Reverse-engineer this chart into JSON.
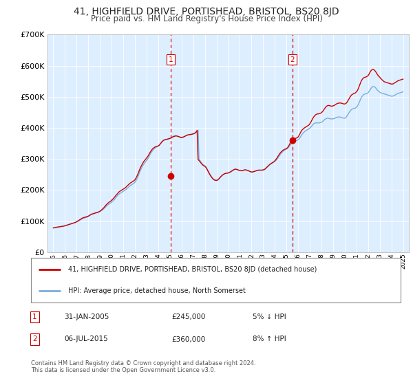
{
  "title": "41, HIGHFIELD DRIVE, PORTISHEAD, BRISTOL, BS20 8JD",
  "subtitle": "Price paid vs. HM Land Registry's House Price Index (HPI)",
  "legend_line1": "41, HIGHFIELD DRIVE, PORTISHEAD, BRISTOL, BS20 8JD (detached house)",
  "legend_line2": "HPI: Average price, detached house, North Somerset",
  "sale1_date": "31-JAN-2005",
  "sale1_price": "£245,000",
  "sale1_hpi": "5% ↓ HPI",
  "sale1_year": 2005.08,
  "sale1_value": 245000,
  "sale2_date": "06-JUL-2015",
  "sale2_price": "£360,000",
  "sale2_hpi": "8% ↑ HPI",
  "sale2_year": 2015.5,
  "sale2_value": 360000,
  "footer": "Contains HM Land Registry data © Crown copyright and database right 2024.\nThis data is licensed under the Open Government Licence v3.0.",
  "line_color_property": "#cc0000",
  "line_color_hpi": "#7aaddc",
  "vline_color": "#cc0000",
  "plot_bg_color": "#ddeeff",
  "grid_color": "#ffffff",
  "ylim": [
    0,
    700000
  ],
  "xlim_start": 1994.5,
  "xlim_end": 2025.5,
  "hpi_x": [
    1995.0,
    1995.083,
    1995.167,
    1995.25,
    1995.333,
    1995.417,
    1995.5,
    1995.583,
    1995.667,
    1995.75,
    1995.833,
    1995.917,
    1996.0,
    1996.083,
    1996.167,
    1996.25,
    1996.333,
    1996.417,
    1996.5,
    1996.583,
    1996.667,
    1996.75,
    1996.833,
    1996.917,
    1997.0,
    1997.083,
    1997.167,
    1997.25,
    1997.333,
    1997.417,
    1997.5,
    1997.583,
    1997.667,
    1997.75,
    1997.833,
    1997.917,
    1998.0,
    1998.083,
    1998.167,
    1998.25,
    1998.333,
    1998.417,
    1998.5,
    1998.583,
    1998.667,
    1998.75,
    1998.833,
    1998.917,
    1999.0,
    1999.083,
    1999.167,
    1999.25,
    1999.333,
    1999.417,
    1999.5,
    1999.583,
    1999.667,
    1999.75,
    1999.833,
    1999.917,
    2000.0,
    2000.083,
    2000.167,
    2000.25,
    2000.333,
    2000.417,
    2000.5,
    2000.583,
    2000.667,
    2000.75,
    2000.833,
    2000.917,
    2001.0,
    2001.083,
    2001.167,
    2001.25,
    2001.333,
    2001.417,
    2001.5,
    2001.583,
    2001.667,
    2001.75,
    2001.833,
    2001.917,
    2002.0,
    2002.083,
    2002.167,
    2002.25,
    2002.333,
    2002.417,
    2002.5,
    2002.583,
    2002.667,
    2002.75,
    2002.833,
    2002.917,
    2003.0,
    2003.083,
    2003.167,
    2003.25,
    2003.333,
    2003.417,
    2003.5,
    2003.583,
    2003.667,
    2003.75,
    2003.833,
    2003.917,
    2004.0,
    2004.083,
    2004.167,
    2004.25,
    2004.333,
    2004.417,
    2004.5,
    2004.583,
    2004.667,
    2004.75,
    2004.833,
    2004.917,
    2005.0,
    2005.083,
    2005.167,
    2005.25,
    2005.333,
    2005.417,
    2005.5,
    2005.583,
    2005.667,
    2005.75,
    2005.833,
    2005.917,
    2006.0,
    2006.083,
    2006.167,
    2006.25,
    2006.333,
    2006.417,
    2006.5,
    2006.583,
    2006.667,
    2006.75,
    2006.833,
    2006.917,
    2007.0,
    2007.083,
    2007.167,
    2007.25,
    2007.333,
    2007.417,
    2007.5,
    2007.583,
    2007.667,
    2007.75,
    2007.833,
    2007.917,
    2008.0,
    2008.083,
    2008.167,
    2008.25,
    2008.333,
    2008.417,
    2008.5,
    2008.583,
    2008.667,
    2008.75,
    2008.833,
    2008.917,
    2009.0,
    2009.083,
    2009.167,
    2009.25,
    2009.333,
    2009.417,
    2009.5,
    2009.583,
    2009.667,
    2009.75,
    2009.833,
    2009.917,
    2010.0,
    2010.083,
    2010.167,
    2010.25,
    2010.333,
    2010.417,
    2010.5,
    2010.583,
    2010.667,
    2010.75,
    2010.833,
    2010.917,
    2011.0,
    2011.083,
    2011.167,
    2011.25,
    2011.333,
    2011.417,
    2011.5,
    2011.583,
    2011.667,
    2011.75,
    2011.833,
    2011.917,
    2012.0,
    2012.083,
    2012.167,
    2012.25,
    2012.333,
    2012.417,
    2012.5,
    2012.583,
    2012.667,
    2012.75,
    2012.833,
    2012.917,
    2013.0,
    2013.083,
    2013.167,
    2013.25,
    2013.333,
    2013.417,
    2013.5,
    2013.583,
    2013.667,
    2013.75,
    2013.833,
    2013.917,
    2014.0,
    2014.083,
    2014.167,
    2014.25,
    2014.333,
    2014.417,
    2014.5,
    2014.583,
    2014.667,
    2014.75,
    2014.833,
    2014.917,
    2015.0,
    2015.083,
    2015.167,
    2015.25,
    2015.333,
    2015.417,
    2015.5,
    2015.583,
    2015.667,
    2015.75,
    2015.833,
    2015.917,
    2016.0,
    2016.083,
    2016.167,
    2016.25,
    2016.333,
    2016.417,
    2016.5,
    2016.583,
    2016.667,
    2016.75,
    2016.833,
    2016.917,
    2017.0,
    2017.083,
    2017.167,
    2017.25,
    2017.333,
    2017.417,
    2017.5,
    2017.583,
    2017.667,
    2017.75,
    2017.833,
    2017.917,
    2018.0,
    2018.083,
    2018.167,
    2018.25,
    2018.333,
    2018.417,
    2018.5,
    2018.583,
    2018.667,
    2018.75,
    2018.833,
    2018.917,
    2019.0,
    2019.083,
    2019.167,
    2019.25,
    2019.333,
    2019.417,
    2019.5,
    2019.583,
    2019.667,
    2019.75,
    2019.833,
    2019.917,
    2020.0,
    2020.083,
    2020.167,
    2020.25,
    2020.333,
    2020.417,
    2020.5,
    2020.583,
    2020.667,
    2020.75,
    2020.833,
    2020.917,
    2021.0,
    2021.083,
    2021.167,
    2021.25,
    2021.333,
    2021.417,
    2021.5,
    2021.583,
    2021.667,
    2021.75,
    2021.833,
    2021.917,
    2022.0,
    2022.083,
    2022.167,
    2022.25,
    2022.333,
    2022.417,
    2022.5,
    2022.583,
    2022.667,
    2022.75,
    2022.833,
    2022.917,
    2023.0,
    2023.083,
    2023.167,
    2023.25,
    2023.333,
    2023.417,
    2023.5,
    2023.583,
    2023.667,
    2023.75,
    2023.833,
    2023.917,
    2024.0,
    2024.083,
    2024.167,
    2024.25,
    2024.333,
    2024.417,
    2024.5,
    2024.583,
    2024.667,
    2024.75,
    2024.833,
    2024.917,
    2025.0
  ],
  "hpi_y": [
    78000,
    79000,
    79500,
    80000,
    80500,
    81000,
    81500,
    82000,
    82500,
    83000,
    83500,
    84000,
    85000,
    86000,
    87000,
    88000,
    89000,
    90000,
    91000,
    92000,
    93000,
    94000,
    95000,
    96000,
    98000,
    99000,
    100000,
    102000,
    104000,
    106000,
    108000,
    109000,
    110000,
    111000,
    112000,
    113000,
    115000,
    117000,
    119000,
    121000,
    122000,
    123000,
    124000,
    125000,
    126000,
    127000,
    128000,
    129000,
    131000,
    133000,
    135000,
    137000,
    140000,
    143000,
    146000,
    149000,
    152000,
    154000,
    156000,
    158000,
    161000,
    164000,
    167000,
    170000,
    174000,
    178000,
    182000,
    185000,
    188000,
    190000,
    192000,
    194000,
    196000,
    198000,
    200000,
    202000,
    205000,
    208000,
    211000,
    214000,
    216000,
    218000,
    220000,
    222000,
    225000,
    230000,
    235000,
    242000,
    250000,
    258000,
    265000,
    272000,
    278000,
    283000,
    287000,
    291000,
    295000,
    299000,
    305000,
    311000,
    317000,
    322000,
    326000,
    330000,
    333000,
    336000,
    338000,
    340000,
    342000,
    344000,
    348000,
    352000,
    355000,
    358000,
    360000,
    362000,
    363000,
    364000,
    365000,
    366000,
    367000,
    368000,
    370000,
    372000,
    374000,
    375000,
    375000,
    374000,
    373000,
    371000,
    370000,
    369000,
    368000,
    369000,
    370000,
    372000,
    374000,
    375000,
    376000,
    377000,
    378000,
    378000,
    379000,
    379000,
    380000,
    381000,
    383000,
    385000,
    388000,
    393000,
    298000,
    295000,
    290000,
    285000,
    282000,
    280000,
    278000,
    275000,
    270000,
    264000,
    258000,
    252000,
    247000,
    242000,
    238000,
    235000,
    233000,
    232000,
    231000,
    232000,
    234000,
    237000,
    241000,
    244000,
    247000,
    250000,
    252000,
    253000,
    254000,
    254000,
    255000,
    256000,
    257000,
    259000,
    261000,
    263000,
    265000,
    267000,
    267000,
    266000,
    265000,
    264000,
    263000,
    262000,
    262000,
    263000,
    264000,
    265000,
    265000,
    264000,
    263000,
    262000,
    260000,
    259000,
    258000,
    258000,
    259000,
    260000,
    261000,
    262000,
    263000,
    264000,
    264000,
    264000,
    264000,
    264000,
    264000,
    265000,
    267000,
    270000,
    273000,
    276000,
    279000,
    282000,
    284000,
    286000,
    288000,
    290000,
    292000,
    295000,
    298000,
    302000,
    307000,
    312000,
    316000,
    320000,
    323000,
    326000,
    328000,
    330000,
    332000,
    334000,
    337000,
    341000,
    345000,
    349000,
    353000,
    355000,
    357000,
    358000,
    359000,
    360000,
    362000,
    365000,
    369000,
    374000,
    379000,
    383000,
    386000,
    389000,
    391000,
    393000,
    395000,
    397000,
    399000,
    402000,
    406000,
    410000,
    413000,
    415000,
    416000,
    416000,
    416000,
    416000,
    416000,
    417000,
    418000,
    420000,
    423000,
    426000,
    428000,
    430000,
    431000,
    431000,
    430000,
    429000,
    429000,
    429000,
    429000,
    430000,
    431000,
    433000,
    434000,
    435000,
    435000,
    435000,
    434000,
    433000,
    432000,
    431000,
    431000,
    433000,
    437000,
    442000,
    447000,
    452000,
    456000,
    459000,
    461000,
    462000,
    463000,
    464000,
    466000,
    470000,
    476000,
    483000,
    490000,
    497000,
    502000,
    506000,
    508000,
    509000,
    510000,
    511000,
    513000,
    517000,
    522000,
    527000,
    531000,
    533000,
    533000,
    531000,
    528000,
    524000,
    520000,
    517000,
    515000,
    513000,
    512000,
    511000,
    510000,
    509000,
    508000,
    507000,
    506000,
    505000,
    504000,
    503000,
    502000,
    502000,
    503000,
    504000,
    506000,
    508000,
    510000,
    511000,
    512000,
    513000,
    514000,
    515000,
    516000
  ],
  "prop_x": [
    1995.0,
    1995.083,
    1995.167,
    1995.25,
    1995.333,
    1995.417,
    1995.5,
    1995.583,
    1995.667,
    1995.75,
    1995.833,
    1995.917,
    1996.0,
    1996.083,
    1996.167,
    1996.25,
    1996.333,
    1996.417,
    1996.5,
    1996.583,
    1996.667,
    1996.75,
    1996.833,
    1996.917,
    1997.0,
    1997.083,
    1997.167,
    1997.25,
    1997.333,
    1997.417,
    1997.5,
    1997.583,
    1997.667,
    1997.75,
    1997.833,
    1997.917,
    1998.0,
    1998.083,
    1998.167,
    1998.25,
    1998.333,
    1998.417,
    1998.5,
    1998.583,
    1998.667,
    1998.75,
    1998.833,
    1998.917,
    1999.0,
    1999.083,
    1999.167,
    1999.25,
    1999.333,
    1999.417,
    1999.5,
    1999.583,
    1999.667,
    1999.75,
    1999.833,
    1999.917,
    2000.0,
    2000.083,
    2000.167,
    2000.25,
    2000.333,
    2000.417,
    2000.5,
    2000.583,
    2000.667,
    2000.75,
    2000.833,
    2000.917,
    2001.0,
    2001.083,
    2001.167,
    2001.25,
    2001.333,
    2001.417,
    2001.5,
    2001.583,
    2001.667,
    2001.75,
    2001.833,
    2001.917,
    2002.0,
    2002.083,
    2002.167,
    2002.25,
    2002.333,
    2002.417,
    2002.5,
    2002.583,
    2002.667,
    2002.75,
    2002.833,
    2002.917,
    2003.0,
    2003.083,
    2003.167,
    2003.25,
    2003.333,
    2003.417,
    2003.5,
    2003.583,
    2003.667,
    2003.75,
    2003.833,
    2003.917,
    2004.0,
    2004.083,
    2004.167,
    2004.25,
    2004.333,
    2004.417,
    2004.5,
    2004.583,
    2004.667,
    2004.75,
    2004.833,
    2004.917,
    2005.0,
    2005.083,
    2005.167,
    2005.25,
    2005.333,
    2005.417,
    2005.5,
    2005.583,
    2005.667,
    2005.75,
    2005.833,
    2005.917,
    2006.0,
    2006.083,
    2006.167,
    2006.25,
    2006.333,
    2006.417,
    2006.5,
    2006.583,
    2006.667,
    2006.75,
    2006.833,
    2006.917,
    2007.0,
    2007.083,
    2007.167,
    2007.25,
    2007.333,
    2007.417,
    2007.5,
    2007.583,
    2007.667,
    2007.75,
    2007.833,
    2007.917,
    2008.0,
    2008.083,
    2008.167,
    2008.25,
    2008.333,
    2008.417,
    2008.5,
    2008.583,
    2008.667,
    2008.75,
    2008.833,
    2008.917,
    2009.0,
    2009.083,
    2009.167,
    2009.25,
    2009.333,
    2009.417,
    2009.5,
    2009.583,
    2009.667,
    2009.75,
    2009.833,
    2009.917,
    2010.0,
    2010.083,
    2010.167,
    2010.25,
    2010.333,
    2010.417,
    2010.5,
    2010.583,
    2010.667,
    2010.75,
    2010.833,
    2010.917,
    2011.0,
    2011.083,
    2011.167,
    2011.25,
    2011.333,
    2011.417,
    2011.5,
    2011.583,
    2011.667,
    2011.75,
    2011.833,
    2011.917,
    2012.0,
    2012.083,
    2012.167,
    2012.25,
    2012.333,
    2012.417,
    2012.5,
    2012.583,
    2012.667,
    2012.75,
    2012.833,
    2012.917,
    2013.0,
    2013.083,
    2013.167,
    2013.25,
    2013.333,
    2013.417,
    2013.5,
    2013.583,
    2013.667,
    2013.75,
    2013.833,
    2013.917,
    2014.0,
    2014.083,
    2014.167,
    2014.25,
    2014.333,
    2014.417,
    2014.5,
    2014.583,
    2014.667,
    2014.75,
    2014.833,
    2014.917,
    2015.0,
    2015.083,
    2015.167,
    2015.25,
    2015.333,
    2015.417,
    2015.5,
    2015.583,
    2015.667,
    2015.75,
    2015.833,
    2015.917,
    2016.0,
    2016.083,
    2016.167,
    2016.25,
    2016.333,
    2016.417,
    2016.5,
    2016.583,
    2016.667,
    2016.75,
    2016.833,
    2016.917,
    2017.0,
    2017.083,
    2017.167,
    2017.25,
    2017.333,
    2017.417,
    2017.5,
    2017.583,
    2017.667,
    2017.75,
    2017.833,
    2017.917,
    2018.0,
    2018.083,
    2018.167,
    2018.25,
    2018.333,
    2018.417,
    2018.5,
    2018.583,
    2018.667,
    2018.75,
    2018.833,
    2018.917,
    2019.0,
    2019.083,
    2019.167,
    2019.25,
    2019.333,
    2019.417,
    2019.5,
    2019.583,
    2019.667,
    2019.75,
    2019.833,
    2019.917,
    2020.0,
    2020.083,
    2020.167,
    2020.25,
    2020.333,
    2020.417,
    2020.5,
    2020.583,
    2020.667,
    2020.75,
    2020.833,
    2020.917,
    2021.0,
    2021.083,
    2021.167,
    2021.25,
    2021.333,
    2021.417,
    2021.5,
    2021.583,
    2021.667,
    2021.75,
    2021.833,
    2021.917,
    2022.0,
    2022.083,
    2022.167,
    2022.25,
    2022.333,
    2022.417,
    2022.5,
    2022.583,
    2022.667,
    2022.75,
    2022.833,
    2022.917,
    2023.0,
    2023.083,
    2023.167,
    2023.25,
    2023.333,
    2023.417,
    2023.5,
    2023.583,
    2023.667,
    2023.75,
    2023.833,
    2023.917,
    2024.0,
    2024.083,
    2024.167,
    2024.25,
    2024.333,
    2024.417,
    2024.5,
    2024.583,
    2024.667,
    2024.75,
    2024.833,
    2024.917,
    2025.0
  ],
  "prop_y": [
    78000,
    79000,
    79500,
    80000,
    80500,
    81000,
    81500,
    82000,
    82500,
    83000,
    83500,
    84000,
    85000,
    86000,
    87000,
    88000,
    89000,
    90000,
    91000,
    92000,
    93000,
    94000,
    95000,
    96000,
    98000,
    100000,
    102000,
    104000,
    106000,
    108000,
    110000,
    111000,
    112000,
    113000,
    114000,
    115000,
    116000,
    118000,
    120000,
    122000,
    123000,
    124000,
    125000,
    126000,
    127000,
    128000,
    129000,
    130000,
    132000,
    134000,
    137000,
    140000,
    143000,
    147000,
    151000,
    154000,
    157000,
    160000,
    162000,
    164000,
    167000,
    170000,
    173000,
    177000,
    181000,
    185000,
    188000,
    192000,
    195000,
    197000,
    199000,
    201000,
    203000,
    205000,
    207000,
    210000,
    213000,
    216000,
    219000,
    222000,
    224000,
    226000,
    228000,
    230000,
    233000,
    238000,
    244000,
    251000,
    259000,
    267000,
    274000,
    280000,
    286000,
    291000,
    295000,
    299000,
    303000,
    307000,
    312000,
    318000,
    323000,
    328000,
    332000,
    335000,
    337000,
    339000,
    340000,
    341000,
    342000,
    344000,
    348000,
    352000,
    356000,
    359000,
    361000,
    362000,
    363000,
    363000,
    364000,
    365000,
    366000,
    367000,
    369000,
    371000,
    372000,
    373000,
    374000,
    374000,
    373000,
    372000,
    371000,
    370000,
    369000,
    370000,
    371000,
    372000,
    374000,
    376000,
    377000,
    378000,
    378000,
    379000,
    379000,
    380000,
    381000,
    382000,
    384000,
    387000,
    392000,
    298000,
    295000,
    291000,
    287000,
    283000,
    280000,
    278000,
    276000,
    273000,
    268000,
    262000,
    256000,
    250000,
    245000,
    241000,
    237000,
    234000,
    232000,
    231000,
    231000,
    232000,
    235000,
    238000,
    242000,
    245000,
    248000,
    250000,
    252000,
    253000,
    254000,
    254000,
    255000,
    256000,
    258000,
    260000,
    262000,
    264000,
    266000,
    267000,
    267000,
    266000,
    265000,
    264000,
    263000,
    262000,
    262000,
    263000,
    264000,
    265000,
    265000,
    264000,
    263000,
    262000,
    260000,
    259000,
    258000,
    258000,
    259000,
    260000,
    261000,
    262000,
    263000,
    264000,
    264000,
    264000,
    264000,
    264000,
    265000,
    266000,
    268000,
    271000,
    274000,
    277000,
    280000,
    283000,
    285000,
    287000,
    289000,
    291000,
    294000,
    298000,
    302000,
    307000,
    312000,
    317000,
    321000,
    324000,
    327000,
    329000,
    331000,
    332000,
    333000,
    336000,
    340000,
    346000,
    352000,
    357000,
    361000,
    363000,
    365000,
    366000,
    367000,
    368000,
    371000,
    376000,
    382000,
    388000,
    393000,
    396000,
    399000,
    401000,
    403000,
    405000,
    407000,
    409000,
    413000,
    418000,
    424000,
    430000,
    435000,
    439000,
    442000,
    444000,
    445000,
    445000,
    446000,
    447000,
    449000,
    452000,
    456000,
    461000,
    465000,
    469000,
    471000,
    472000,
    472000,
    471000,
    470000,
    470000,
    471000,
    472000,
    474000,
    476000,
    478000,
    479000,
    480000,
    480000,
    480000,
    479000,
    478000,
    477000,
    477000,
    478000,
    481000,
    486000,
    491000,
    497000,
    502000,
    506000,
    508000,
    510000,
    511000,
    513000,
    516000,
    520000,
    527000,
    535000,
    543000,
    551000,
    556000,
    560000,
    562000,
    563000,
    564000,
    566000,
    568000,
    573000,
    579000,
    584000,
    587000,
    588000,
    587000,
    584000,
    580000,
    575000,
    570000,
    566000,
    563000,
    559000,
    556000,
    553000,
    550000,
    548000,
    547000,
    546000,
    545000,
    544000,
    543000,
    542000,
    541000,
    541000,
    542000,
    544000,
    546000,
    548000,
    550000,
    552000,
    553000,
    554000,
    555000,
    556000,
    557000
  ]
}
